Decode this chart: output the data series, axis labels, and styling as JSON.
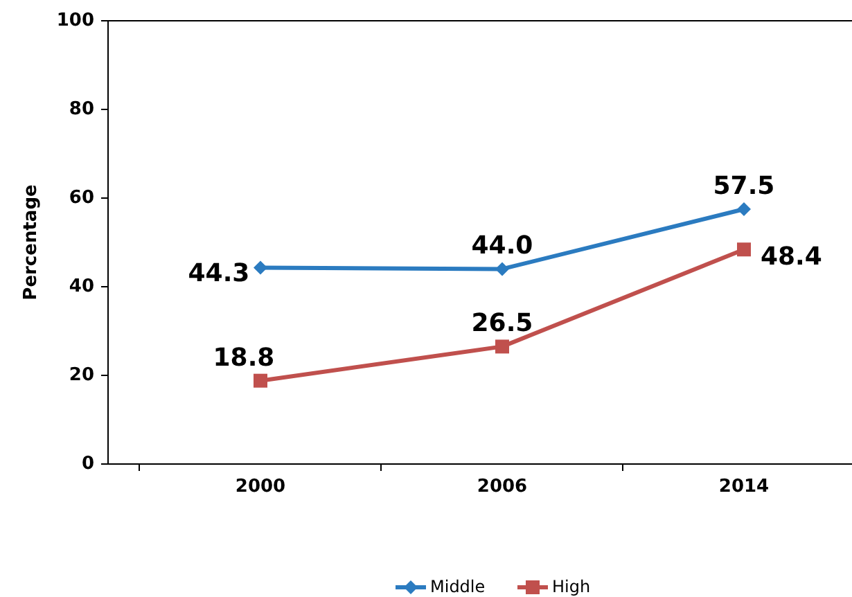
{
  "chart_data": {
    "type": "line",
    "ylabel": "Percentage",
    "categories": [
      "2000",
      "2006",
      "2014"
    ],
    "series": [
      {
        "name": "Middle",
        "color": "#2b7bc0",
        "values": [
          44.3,
          44.0,
          57.5
        ],
        "value_labels": [
          "44.3",
          "44.0",
          "57.5"
        ],
        "marker": "diamond"
      },
      {
        "name": "High",
        "color": "#c0504d",
        "values": [
          18.8,
          26.5,
          48.4
        ],
        "value_labels": [
          "18.8",
          "26.5",
          "48.4"
        ],
        "marker": "square"
      }
    ],
    "ylim": [
      0,
      100
    ],
    "yticks": [
      0,
      20,
      40,
      60,
      80,
      100
    ],
    "legend": "bottom",
    "grid": false
  }
}
